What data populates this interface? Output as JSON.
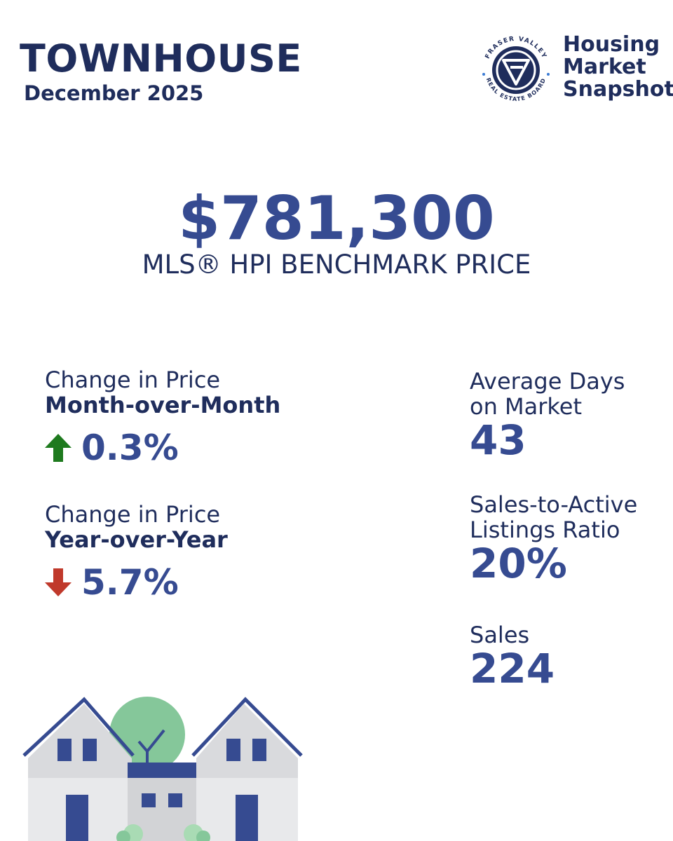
{
  "header": {
    "title": "TOWNHOUSE",
    "date": "December 2025"
  },
  "logo": {
    "ring_text_top": "FRASER VALLEY",
    "ring_text_bottom": "REAL ESTATE BOARD",
    "icon": "fvreb-logo-icon",
    "snapshot_lines": [
      "Housing",
      "Market",
      "Snapshot"
    ]
  },
  "benchmark": {
    "price": "$781,300",
    "label": "MLS® HPI BENCHMARK PRICE"
  },
  "mom": {
    "label_top": "Change in Price",
    "label_bold": "Month-over-Month",
    "value": "0.3%",
    "direction": "up",
    "color": "#1e7a1e"
  },
  "yoy": {
    "label_top": "Change in Price",
    "label_bold": "Year-over-Year",
    "value": "5.7%",
    "direction": "down",
    "color": "#c0392b"
  },
  "stats": {
    "days": {
      "label_line1": "Average Days",
      "label_line2": "on Market",
      "value": "43"
    },
    "ratio": {
      "label_line1": "Sales-to-Active",
      "label_line2": "Listings Ratio",
      "value": "20%"
    },
    "sales": {
      "label_line1": "Sales",
      "value": "224"
    }
  },
  "colors": {
    "navy": "#1f2d5c",
    "accent": "#364b91",
    "tree": "#85c79a"
  }
}
